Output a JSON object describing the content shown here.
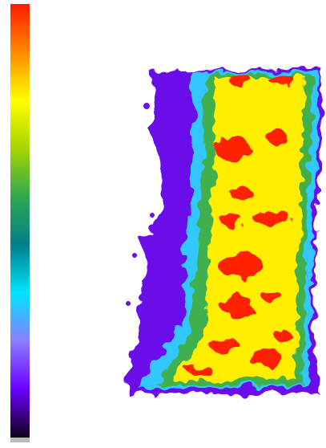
{
  "colormap": {
    "colors": [
      "#ff1a00",
      "#ff8a00",
      "#ffff00",
      "#a8d400",
      "#2fa84f",
      "#007f8c",
      "#00e5ff",
      "#8c7cff",
      "#6a00ff",
      "#12001a"
    ]
  }
}
